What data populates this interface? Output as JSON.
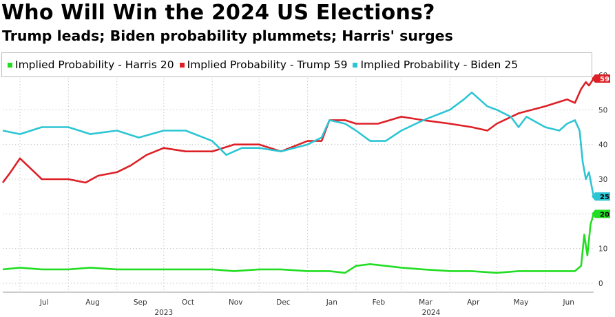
{
  "title": "Who Will Win the 2024 US Elections?",
  "subtitle": "Trump leads; Biden probability plummets; Harris' surges",
  "colors": {
    "harris": "#22dd22",
    "trump": "#dd1f26",
    "biden": "#2cc5d4",
    "grid": "#c8c8c8"
  },
  "chart_data": {
    "type": "line",
    "x_axis": {
      "month_ticks": [
        "Jul",
        "Aug",
        "Sep",
        "Oct",
        "Nov",
        "Dec",
        "Jan",
        "Feb",
        "Mar",
        "Apr",
        "May",
        "Jun"
      ],
      "year_labels": [
        "2023",
        "2024"
      ],
      "range": [
        "2023-06-20",
        "2024-07-02"
      ]
    },
    "y_axis": {
      "range": [
        0,
        60
      ],
      "ticks": [
        "0",
        "10",
        "20",
        "30",
        "40",
        "50",
        "60"
      ],
      "position": "right",
      "grid": true
    },
    "legend_position": "top",
    "series": [
      {
        "name": "Implied Probability - Harris",
        "last_value": "20",
        "color_key": "harris",
        "points": [
          [
            "2023-06-20",
            4
          ],
          [
            "2023-07-01",
            4.5
          ],
          [
            "2023-07-15",
            4
          ],
          [
            "2023-08-01",
            4
          ],
          [
            "2023-08-15",
            4.5
          ],
          [
            "2023-09-01",
            4
          ],
          [
            "2023-09-15",
            4
          ],
          [
            "2023-10-01",
            4
          ],
          [
            "2023-10-15",
            4
          ],
          [
            "2023-11-01",
            4
          ],
          [
            "2023-11-15",
            3.5
          ],
          [
            "2023-12-01",
            4
          ],
          [
            "2023-12-15",
            4
          ],
          [
            "2024-01-01",
            3.5
          ],
          [
            "2024-01-15",
            3.5
          ],
          [
            "2024-01-25",
            3
          ],
          [
            "2024-02-01",
            5
          ],
          [
            "2024-02-10",
            5.5
          ],
          [
            "2024-02-20",
            5
          ],
          [
            "2024-03-01",
            4.5
          ],
          [
            "2024-03-15",
            4
          ],
          [
            "2024-04-01",
            3.5
          ],
          [
            "2024-04-15",
            3.5
          ],
          [
            "2024-05-01",
            3
          ],
          [
            "2024-05-15",
            3.5
          ],
          [
            "2024-06-01",
            3.5
          ],
          [
            "2024-06-20",
            3.5
          ],
          [
            "2024-06-24",
            5
          ],
          [
            "2024-06-26",
            14
          ],
          [
            "2024-06-28",
            8
          ],
          [
            "2024-06-30",
            17
          ],
          [
            "2024-07-02",
            20
          ]
        ]
      },
      {
        "name": "Implied Probability - Trump",
        "last_value": "59",
        "color_key": "trump",
        "points": [
          [
            "2023-06-20",
            29
          ],
          [
            "2023-06-25",
            32
          ],
          [
            "2023-07-01",
            36
          ],
          [
            "2023-07-08",
            33
          ],
          [
            "2023-07-15",
            30
          ],
          [
            "2023-08-01",
            30
          ],
          [
            "2023-08-12",
            29
          ],
          [
            "2023-08-20",
            31
          ],
          [
            "2023-09-01",
            32
          ],
          [
            "2023-09-10",
            34
          ],
          [
            "2023-09-20",
            37
          ],
          [
            "2023-10-01",
            39
          ],
          [
            "2023-10-15",
            38
          ],
          [
            "2023-11-01",
            38
          ],
          [
            "2023-11-15",
            40
          ],
          [
            "2023-12-01",
            40
          ],
          [
            "2023-12-15",
            38
          ],
          [
            "2024-01-01",
            41
          ],
          [
            "2024-01-10",
            41
          ],
          [
            "2024-01-15",
            47
          ],
          [
            "2024-01-25",
            47
          ],
          [
            "2024-02-01",
            46
          ],
          [
            "2024-02-15",
            46
          ],
          [
            "2024-03-01",
            48
          ],
          [
            "2024-03-15",
            47
          ],
          [
            "2024-04-01",
            46
          ],
          [
            "2024-04-15",
            45
          ],
          [
            "2024-04-25",
            44
          ],
          [
            "2024-05-01",
            46
          ],
          [
            "2024-05-15",
            49
          ],
          [
            "2024-06-01",
            51
          ],
          [
            "2024-06-15",
            53
          ],
          [
            "2024-06-20",
            52
          ],
          [
            "2024-06-24",
            56
          ],
          [
            "2024-06-27",
            58
          ],
          [
            "2024-06-29",
            57
          ],
          [
            "2024-07-02",
            59
          ]
        ]
      },
      {
        "name": "Implied Probability - Biden",
        "last_value": "25",
        "color_key": "biden",
        "points": [
          [
            "2023-06-20",
            44
          ],
          [
            "2023-07-01",
            43
          ],
          [
            "2023-07-15",
            45
          ],
          [
            "2023-08-01",
            45
          ],
          [
            "2023-08-15",
            43
          ],
          [
            "2023-09-01",
            44
          ],
          [
            "2023-09-15",
            42
          ],
          [
            "2023-10-01",
            44
          ],
          [
            "2023-10-15",
            44
          ],
          [
            "2023-11-01",
            41
          ],
          [
            "2023-11-10",
            37
          ],
          [
            "2023-11-20",
            39
          ],
          [
            "2023-12-01",
            39
          ],
          [
            "2023-12-15",
            38
          ],
          [
            "2024-01-01",
            40
          ],
          [
            "2024-01-10",
            42
          ],
          [
            "2024-01-15",
            47
          ],
          [
            "2024-01-25",
            46
          ],
          [
            "2024-02-01",
            44
          ],
          [
            "2024-02-10",
            41
          ],
          [
            "2024-02-20",
            41
          ],
          [
            "2024-03-01",
            44
          ],
          [
            "2024-03-15",
            47
          ],
          [
            "2024-04-01",
            50
          ],
          [
            "2024-04-10",
            53
          ],
          [
            "2024-04-15",
            55
          ],
          [
            "2024-04-25",
            51
          ],
          [
            "2024-05-01",
            50
          ],
          [
            "2024-05-10",
            48
          ],
          [
            "2024-05-15",
            45
          ],
          [
            "2024-05-20",
            48
          ],
          [
            "2024-06-01",
            45
          ],
          [
            "2024-06-10",
            44
          ],
          [
            "2024-06-15",
            46
          ],
          [
            "2024-06-20",
            47
          ],
          [
            "2024-06-23",
            44
          ],
          [
            "2024-06-25",
            35
          ],
          [
            "2024-06-27",
            30
          ],
          [
            "2024-06-29",
            32
          ],
          [
            "2024-07-02",
            25
          ]
        ]
      }
    ]
  }
}
